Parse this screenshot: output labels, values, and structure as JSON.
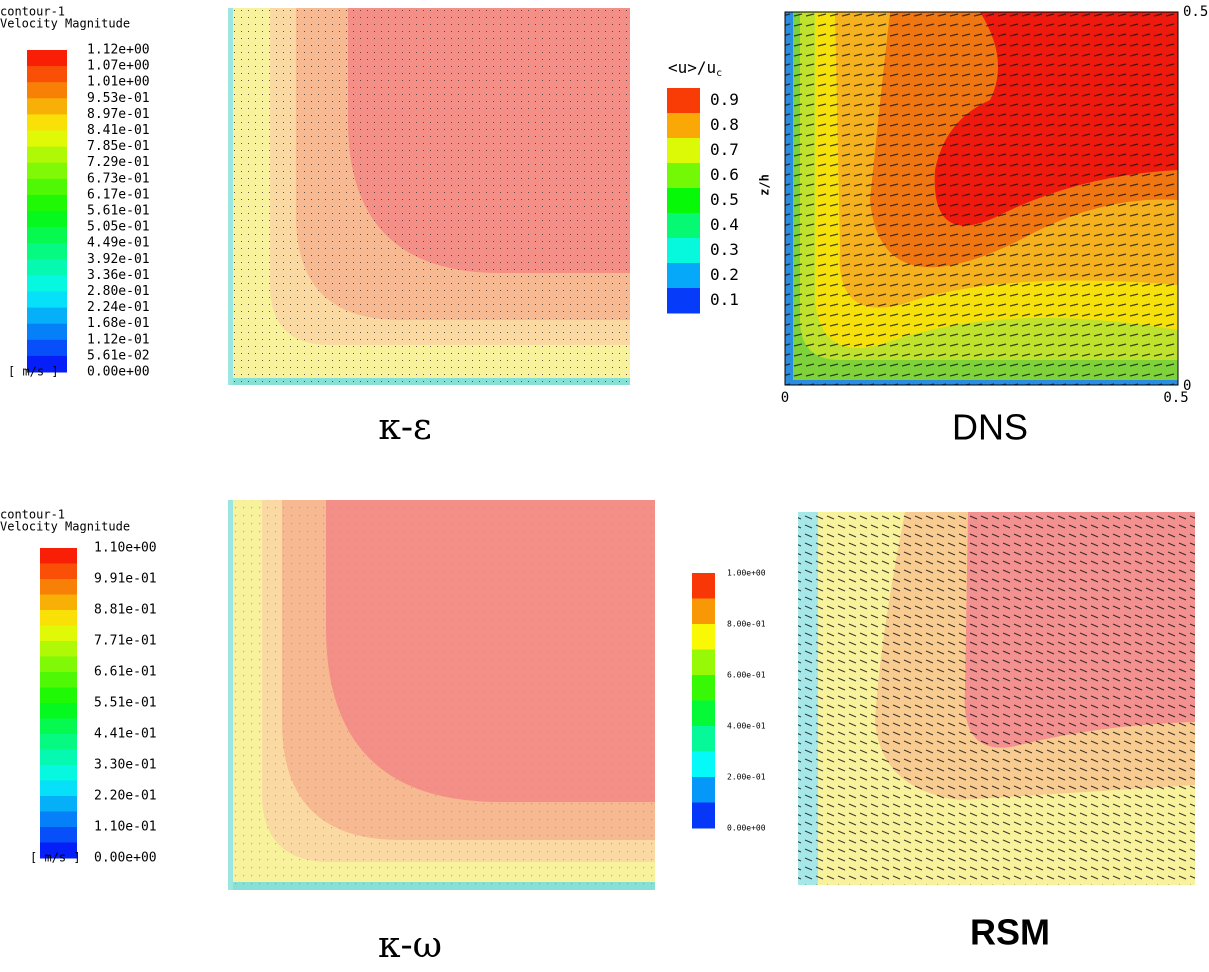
{
  "panels": [
    {
      "caption": "κ-ε",
      "legend": {
        "title": [
          "contour-1",
          "Velocity Magnitude"
        ],
        "unit": "[ m/s ]",
        "labels": [
          "1.12e+00",
          "1.07e+00",
          "1.01e+00",
          "9.53e-01",
          "8.97e-01",
          "8.41e-01",
          "7.85e-01",
          "7.29e-01",
          "6.73e-01",
          "6.17e-01",
          "5.61e-01",
          "5.05e-01",
          "4.49e-01",
          "3.92e-01",
          "3.36e-01",
          "2.80e-01",
          "2.24e-01",
          "1.68e-01",
          "1.12e-01",
          "5.61e-02",
          "0.00e+00"
        ]
      }
    },
    {
      "caption": "DNS",
      "legend": {
        "title": "<u>/u",
        "title_sub": "c",
        "labels": [
          "0.9",
          "0.8",
          "0.7",
          "0.6",
          "0.5",
          "0.4",
          "0.3",
          "0.2",
          "0.1"
        ]
      },
      "axes": {
        "y_top": "0.5",
        "y_bottom": "0",
        "x_left": "0",
        "x_right": "0.5",
        "y_label": "z/h"
      }
    },
    {
      "caption": "κ-ω",
      "legend": {
        "title": [
          "contour-1",
          "Velocity Magnitude"
        ],
        "unit": "[ m/s ]",
        "labels": [
          "1.10e+00",
          "9.91e-01",
          "8.81e-01",
          "7.71e-01",
          "6.61e-01",
          "5.51e-01",
          "4.41e-01",
          "3.30e-01",
          "2.20e-01",
          "1.10e-01",
          "0.00e+00"
        ]
      }
    },
    {
      "caption": "RSM",
      "legend": {
        "labels": [
          "1.00e+00",
          "8.00e-01",
          "6.00e-01",
          "4.00e-01",
          "2.00e-01",
          "0.00e+00"
        ]
      }
    }
  ]
}
